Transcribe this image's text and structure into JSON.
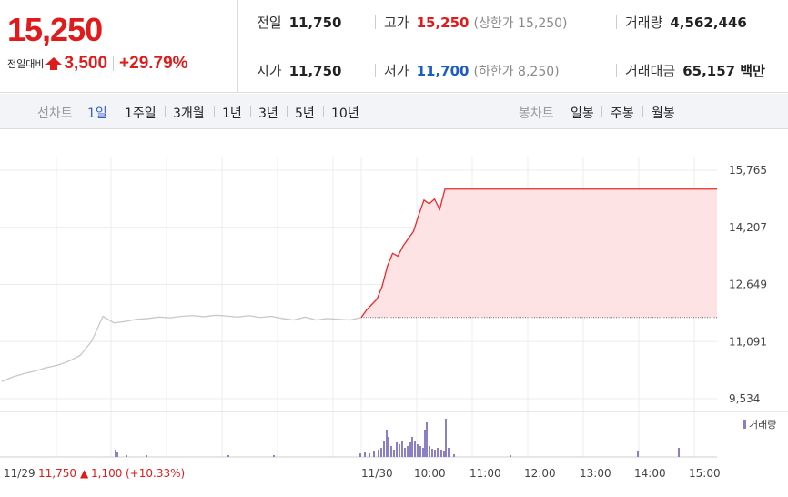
{
  "quote": {
    "price": "15,250",
    "change_label": "전일대비",
    "change": "3,500",
    "change_pct": "+29.79%",
    "colors": {
      "up": "#e01b1b",
      "down": "#1a5cc8"
    }
  },
  "stats": {
    "prev_close_label": "전일",
    "prev_close": "11,750",
    "high_label": "고가",
    "high": "15,250",
    "upper_limit": "(상한가 15,250)",
    "volume_label": "거래량",
    "volume": "4,562,446",
    "open_label": "시가",
    "open": "11,750",
    "low_label": "저가",
    "low": "11,700",
    "lower_limit": "(하한가 8,250)",
    "amount_label": "거래대금",
    "amount": "65,157 백만"
  },
  "tabs": {
    "line_label": "선차트",
    "line": [
      "1일",
      "1주일",
      "3개월",
      "1년",
      "3년",
      "5년",
      "10년"
    ],
    "active": "1일",
    "candle_label": "봉차트",
    "candle": [
      "일봉",
      "주봉",
      "월봉"
    ]
  },
  "footer": {
    "prev_date": "11/29",
    "prev_price": "11,750",
    "prev_arrow": "▲",
    "prev_change": "1,100",
    "prev_pct": "(+10.33%)"
  },
  "chart_data": {
    "type": "line",
    "title": "",
    "y_ticks": [
      15765,
      14207,
      12649,
      11091,
      9534
    ],
    "y_tick_labels": [
      "15,765",
      "14,207",
      "12,649",
      "11,091",
      "9,534"
    ],
    "x_tick_labels": [
      "11/29",
      "11/30",
      "10:00",
      "11:00",
      "12:00",
      "13:00",
      "14:00",
      "15:00"
    ],
    "ylim": [
      9300,
      16000
    ],
    "baseline": 11750,
    "volume_legend": "거래량",
    "series": [
      {
        "day": "11/29",
        "color": "#c8c8c8",
        "values": [
          10000,
          10130,
          10220,
          10290,
          10380,
          10450,
          10560,
          10720,
          11100,
          11780,
          11600,
          11640,
          11700,
          11720,
          11760,
          11740,
          11780,
          11800,
          11770,
          11810,
          11790,
          11760,
          11800,
          11750,
          11780,
          11720,
          11680,
          11760,
          11680,
          11720,
          11700,
          11680,
          11750
        ]
      },
      {
        "day": "11/30",
        "color": "#f0262a",
        "fill": "#fde3e3",
        "values": [
          11750,
          11950,
          12100,
          12250,
          12600,
          13150,
          13500,
          13420,
          13700,
          13900,
          14100,
          14550,
          14950,
          14850,
          14980,
          14700,
          15250,
          15250,
          15250,
          15250,
          15250,
          15250,
          15250,
          15250,
          15250,
          15250,
          15250,
          15250,
          15250,
          15250,
          15250
        ]
      }
    ]
  }
}
